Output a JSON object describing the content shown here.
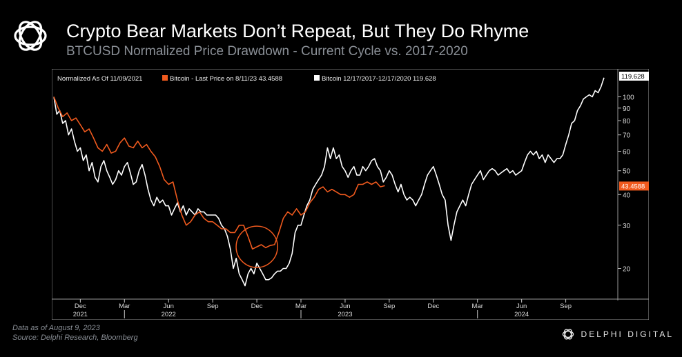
{
  "header": {
    "title": "Crypto Bear Markets Don’t Repeat, But They Do Rhyme",
    "subtitle": "BTCUSD Normalized Price Drawdown - Current Cycle vs. 2017-2020"
  },
  "footer": {
    "data_note": "Data as of August 9, 2023",
    "source": "Source: Delphi Research, Bloomberg",
    "brand": "DELPHI DIGITAL"
  },
  "colors": {
    "background": "#000000",
    "chart_bg": "#000000",
    "orange": "#f05a1e",
    "white": "#ffffff",
    "subtitle_gray": "#8a8f96"
  },
  "chart_data": {
    "type": "line",
    "legend": {
      "prefix": "Normalized As Of 11/09/2021",
      "items": [
        {
          "label": "Bitcoin - Last Price on 8/11/23 43.4588",
          "color": "#f05a1e"
        },
        {
          "label": "Bitcoin 12/17/2017-12/17/2020 119.628",
          "color": "#ffffff"
        }
      ]
    },
    "y_scale": "log",
    "ylim": [
      15,
      125
    ],
    "y_ticks": [
      20,
      30,
      40,
      50,
      60,
      70,
      80,
      90,
      100
    ],
    "x_month_index_range": [
      -1.8,
      35.6
    ],
    "x_months": [
      {
        "label": "Dec",
        "m": 0
      },
      {
        "label": "Mar",
        "m": 3
      },
      {
        "label": "Jun",
        "m": 6
      },
      {
        "label": "Sep",
        "m": 9
      },
      {
        "label": "Dec",
        "m": 12
      },
      {
        "label": "Mar",
        "m": 15
      },
      {
        "label": "Jun",
        "m": 18
      },
      {
        "label": "Sep",
        "m": 21
      },
      {
        "label": "Dec",
        "m": 24
      },
      {
        "label": "Mar",
        "m": 27
      },
      {
        "label": "Jun",
        "m": 30
      },
      {
        "label": "Sep",
        "m": 33
      }
    ],
    "x_years": [
      {
        "label": "2021",
        "m": 0
      },
      {
        "label": "2022",
        "m": 6
      },
      {
        "label": "2023",
        "m": 18
      },
      {
        "label": "2024",
        "m": 30
      }
    ],
    "last_value_labels": [
      {
        "series": "Bitcoin 12/17/2017-12/17/2020",
        "value": "119.628",
        "color": "#ffffff"
      },
      {
        "series": "Bitcoin - Last Price on 8/11/23",
        "value": "43.4588",
        "color": "#f05a1e"
      }
    ],
    "annotation": {
      "type": "circle",
      "m": 12.0,
      "value": 24.5
    },
    "series": [
      {
        "name": "Bitcoin - Last Price on 8/11/23",
        "color": "#f05a1e",
        "points": [
          [
            -1.8,
            100
          ],
          [
            -1.5,
            90
          ],
          [
            -1.2,
            83
          ],
          [
            -0.9,
            86
          ],
          [
            -0.6,
            80
          ],
          [
            -0.3,
            82
          ],
          [
            0,
            77
          ],
          [
            0.3,
            72
          ],
          [
            0.6,
            74
          ],
          [
            0.9,
            68
          ],
          [
            1.2,
            62
          ],
          [
            1.5,
            60
          ],
          [
            1.8,
            64
          ],
          [
            2.1,
            59
          ],
          [
            2.4,
            60
          ],
          [
            2.7,
            65
          ],
          [
            3.0,
            68
          ],
          [
            3.3,
            63
          ],
          [
            3.6,
            62
          ],
          [
            3.9,
            66
          ],
          [
            4.2,
            62
          ],
          [
            4.5,
            64
          ],
          [
            4.8,
            60
          ],
          [
            5.1,
            57
          ],
          [
            5.4,
            52
          ],
          [
            5.7,
            46
          ],
          [
            6.0,
            44
          ],
          [
            6.3,
            45
          ],
          [
            6.6,
            38
          ],
          [
            6.9,
            33
          ],
          [
            7.2,
            30
          ],
          [
            7.5,
            31
          ],
          [
            7.8,
            33
          ],
          [
            8.1,
            34
          ],
          [
            8.4,
            32
          ],
          [
            8.7,
            31
          ],
          [
            9.0,
            31
          ],
          [
            9.3,
            30
          ],
          [
            9.6,
            29
          ],
          [
            9.9,
            29
          ],
          [
            10.2,
            28
          ],
          [
            10.5,
            28
          ],
          [
            10.8,
            30
          ],
          [
            11.1,
            30
          ],
          [
            11.4,
            27
          ],
          [
            11.7,
            24
          ],
          [
            12.0,
            24.5
          ],
          [
            12.3,
            25
          ],
          [
            12.6,
            24.3
          ],
          [
            12.9,
            24.8
          ],
          [
            13.2,
            25
          ],
          [
            13.5,
            28
          ],
          [
            13.8,
            32
          ],
          [
            14.1,
            34
          ],
          [
            14.4,
            33
          ],
          [
            14.7,
            35
          ],
          [
            15.0,
            33
          ],
          [
            15.3,
            34
          ],
          [
            15.6,
            37
          ],
          [
            15.9,
            39
          ],
          [
            16.2,
            42
          ],
          [
            16.5,
            43
          ],
          [
            16.8,
            41
          ],
          [
            17.1,
            42
          ],
          [
            17.4,
            41
          ],
          [
            17.7,
            40
          ],
          [
            18.0,
            40
          ],
          [
            18.3,
            39
          ],
          [
            18.6,
            40
          ],
          [
            18.9,
            44
          ],
          [
            19.2,
            44
          ],
          [
            19.5,
            45
          ],
          [
            19.8,
            44
          ],
          [
            20.1,
            45
          ],
          [
            20.4,
            43
          ],
          [
            20.7,
            43.46
          ]
        ]
      },
      {
        "name": "Bitcoin 12/17/2017-12/17/2020",
        "color": "#ffffff",
        "points": [
          [
            -1.8,
            100
          ],
          [
            -1.6,
            85
          ],
          [
            -1.4,
            88
          ],
          [
            -1.2,
            78
          ],
          [
            -1.0,
            80
          ],
          [
            -0.8,
            70
          ],
          [
            -0.6,
            74
          ],
          [
            -0.4,
            66
          ],
          [
            -0.2,
            60
          ],
          [
            0.0,
            62
          ],
          [
            0.2,
            55
          ],
          [
            0.4,
            58
          ],
          [
            0.6,
            50
          ],
          [
            0.8,
            54
          ],
          [
            1.0,
            47
          ],
          [
            1.2,
            45
          ],
          [
            1.4,
            52
          ],
          [
            1.6,
            55
          ],
          [
            1.8,
            50
          ],
          [
            2.0,
            47
          ],
          [
            2.2,
            44
          ],
          [
            2.4,
            46
          ],
          [
            2.6,
            50
          ],
          [
            2.8,
            48
          ],
          [
            3.0,
            52
          ],
          [
            3.2,
            54
          ],
          [
            3.4,
            49
          ],
          [
            3.6,
            44
          ],
          [
            3.8,
            45
          ],
          [
            4.0,
            50
          ],
          [
            4.2,
            53
          ],
          [
            4.4,
            48
          ],
          [
            4.6,
            42
          ],
          [
            4.8,
            38
          ],
          [
            5.0,
            36
          ],
          [
            5.2,
            39
          ],
          [
            5.4,
            37
          ],
          [
            5.6,
            38
          ],
          [
            5.8,
            36
          ],
          [
            6.0,
            36
          ],
          [
            6.2,
            33
          ],
          [
            6.4,
            35
          ],
          [
            6.6,
            37
          ],
          [
            6.8,
            34
          ],
          [
            7.0,
            36
          ],
          [
            7.2,
            33
          ],
          [
            7.4,
            35
          ],
          [
            7.6,
            34
          ],
          [
            7.8,
            33
          ],
          [
            8.0,
            35
          ],
          [
            8.2,
            34
          ],
          [
            8.4,
            34
          ],
          [
            8.6,
            33
          ],
          [
            8.8,
            33
          ],
          [
            9.0,
            33
          ],
          [
            9.2,
            33
          ],
          [
            9.4,
            32
          ],
          [
            9.6,
            30
          ],
          [
            9.8,
            29
          ],
          [
            10.0,
            27
          ],
          [
            10.2,
            24
          ],
          [
            10.4,
            20
          ],
          [
            10.6,
            22
          ],
          [
            10.8,
            19
          ],
          [
            11.0,
            18
          ],
          [
            11.2,
            17
          ],
          [
            11.4,
            19
          ],
          [
            11.6,
            20
          ],
          [
            11.8,
            19
          ],
          [
            12.0,
            21
          ],
          [
            12.2,
            20
          ],
          [
            12.4,
            19
          ],
          [
            12.6,
            18
          ],
          [
            12.8,
            18
          ],
          [
            13.0,
            18.3
          ],
          [
            13.2,
            19
          ],
          [
            13.4,
            19.5
          ],
          [
            13.6,
            19.5
          ],
          [
            13.8,
            20
          ],
          [
            14.0,
            20
          ],
          [
            14.2,
            21
          ],
          [
            14.4,
            23
          ],
          [
            14.6,
            28
          ],
          [
            14.8,
            30
          ],
          [
            15.0,
            30
          ],
          [
            15.2,
            33
          ],
          [
            15.4,
            36
          ],
          [
            15.6,
            38
          ],
          [
            15.8,
            42
          ],
          [
            16.0,
            44
          ],
          [
            16.2,
            46
          ],
          [
            16.4,
            48
          ],
          [
            16.6,
            52
          ],
          [
            16.8,
            62
          ],
          [
            17.0,
            56
          ],
          [
            17.2,
            62
          ],
          [
            17.4,
            56
          ],
          [
            17.6,
            58
          ],
          [
            17.8,
            52
          ],
          [
            18.0,
            50
          ],
          [
            18.2,
            47
          ],
          [
            18.4,
            50
          ],
          [
            18.6,
            52
          ],
          [
            18.8,
            48
          ],
          [
            19.0,
            48
          ],
          [
            19.2,
            52
          ],
          [
            19.4,
            50
          ],
          [
            19.6,
            52
          ],
          [
            19.8,
            55
          ],
          [
            20.0,
            56
          ],
          [
            20.2,
            52
          ],
          [
            20.4,
            50
          ],
          [
            20.6,
            45
          ],
          [
            20.8,
            47
          ],
          [
            21.0,
            50
          ],
          [
            21.2,
            48
          ],
          [
            21.4,
            44
          ],
          [
            21.6,
            41
          ],
          [
            21.8,
            44
          ],
          [
            22.0,
            40
          ],
          [
            22.2,
            38
          ],
          [
            22.4,
            39
          ],
          [
            22.6,
            38
          ],
          [
            22.8,
            36
          ],
          [
            23.0,
            38
          ],
          [
            23.2,
            40
          ],
          [
            23.4,
            44
          ],
          [
            23.6,
            48
          ],
          [
            23.8,
            50
          ],
          [
            24.0,
            52
          ],
          [
            24.2,
            48
          ],
          [
            24.4,
            44
          ],
          [
            24.6,
            40
          ],
          [
            24.8,
            38
          ],
          [
            25.0,
            30
          ],
          [
            25.2,
            26
          ],
          [
            25.4,
            30
          ],
          [
            25.6,
            34
          ],
          [
            25.8,
            36
          ],
          [
            26.0,
            38
          ],
          [
            26.2,
            36
          ],
          [
            26.4,
            40
          ],
          [
            26.6,
            44
          ],
          [
            26.8,
            46
          ],
          [
            27.0,
            48
          ],
          [
            27.2,
            50
          ],
          [
            27.4,
            46
          ],
          [
            27.6,
            48
          ],
          [
            27.8,
            50
          ],
          [
            28.0,
            51
          ],
          [
            28.2,
            50
          ],
          [
            28.4,
            48
          ],
          [
            28.6,
            49
          ],
          [
            28.8,
            50
          ],
          [
            29.0,
            51
          ],
          [
            29.2,
            49
          ],
          [
            29.4,
            50
          ],
          [
            29.6,
            48
          ],
          [
            29.8,
            49
          ],
          [
            30.0,
            50
          ],
          [
            30.2,
            54
          ],
          [
            30.4,
            58
          ],
          [
            30.6,
            60
          ],
          [
            30.8,
            58
          ],
          [
            31.0,
            60
          ],
          [
            31.2,
            56
          ],
          [
            31.4,
            58
          ],
          [
            31.6,
            54
          ],
          [
            31.8,
            58
          ],
          [
            32.0,
            56
          ],
          [
            32.2,
            54
          ],
          [
            32.4,
            56
          ],
          [
            32.6,
            56
          ],
          [
            32.8,
            58
          ],
          [
            33.0,
            64
          ],
          [
            33.2,
            70
          ],
          [
            33.4,
            78
          ],
          [
            33.6,
            80
          ],
          [
            33.8,
            88
          ],
          [
            34.0,
            92
          ],
          [
            34.2,
            98
          ],
          [
            34.4,
            100
          ],
          [
            34.6,
            102
          ],
          [
            34.8,
            100
          ],
          [
            35.0,
            106
          ],
          [
            35.2,
            104
          ],
          [
            35.4,
            110
          ],
          [
            35.6,
            119.628
          ]
        ]
      }
    ]
  }
}
